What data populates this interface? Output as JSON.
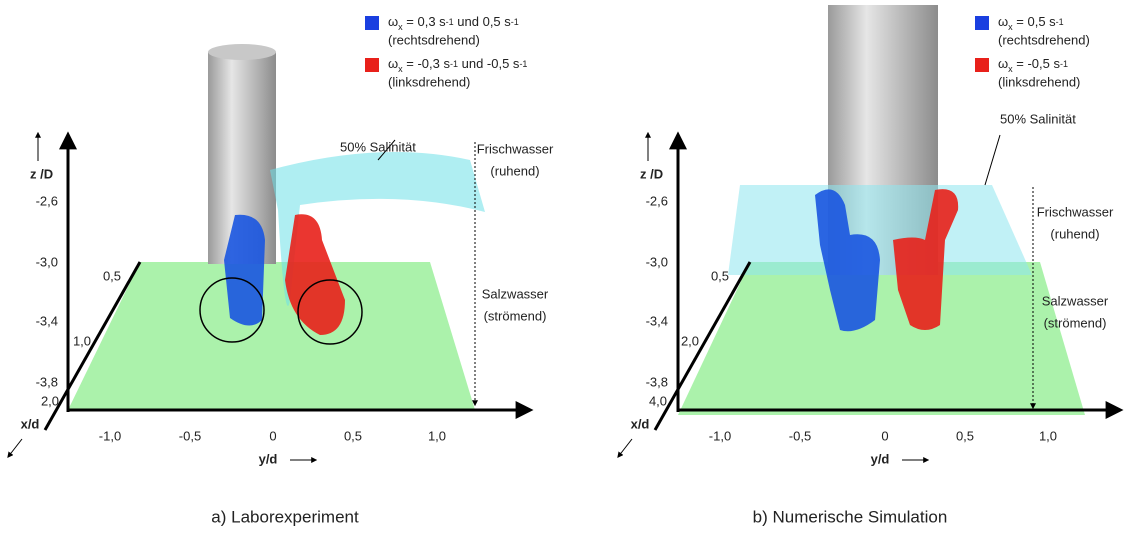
{
  "panels": [
    {
      "caption": "a) Laborexperiment",
      "legend": [
        {
          "parts": [
            "ω",
            "x",
            " = 0,3 s",
            "-1",
            " und 0,5 s",
            "-1"
          ],
          "note": "(rechtsdrehend)"
        },
        {
          "parts": [
            "ω",
            "x",
            " = -0,3 s",
            "-1",
            " und -0,5 s",
            "-1"
          ],
          "note": "(linksdrehend)"
        }
      ],
      "z_axis": {
        "label": "z /D",
        "ticks": [
          "-2,6",
          "-3,0",
          "-3,4",
          "-3,8"
        ]
      },
      "x_axis": {
        "label": "x/d",
        "ticks": [
          "0,5",
          "1,0",
          "2,0"
        ]
      },
      "y_axis": {
        "label": "y/d",
        "ticks": [
          "-1,0",
          "-0,5",
          "0",
          "0,5",
          "1,0"
        ]
      },
      "annotations": {
        "salinity": "50% Salinität",
        "upper": [
          "Frischwasser",
          "(ruhend)"
        ],
        "lower": [
          "Salzwasser",
          "(strömend)"
        ]
      }
    },
    {
      "caption": "b) Numerische Simulation",
      "legend": [
        {
          "parts": [
            "ω",
            "x",
            " = 0,5 s",
            "-1"
          ],
          "note": "(rechtsdrehend)"
        },
        {
          "parts": [
            "ω",
            "x",
            " = -0,5 s",
            "-1"
          ],
          "note": "(linksdrehend)"
        }
      ],
      "z_axis": {
        "label": "z /D",
        "ticks": [
          "-2,6",
          "-3,0",
          "-3,4",
          "-3,8"
        ]
      },
      "x_axis": {
        "label": "x/d",
        "ticks": [
          "0,5",
          "2,0",
          "4,0"
        ]
      },
      "y_axis": {
        "label": "y/d",
        "ticks": [
          "-1,0",
          "-0,5",
          "0",
          "0,5",
          "1,0"
        ]
      },
      "annotations": {
        "salinity": "50% Salinität",
        "upper": [
          "Frischwasser",
          "(ruhend)"
        ],
        "lower": [
          "Salzwasser",
          "(strömend)"
        ]
      }
    }
  ]
}
